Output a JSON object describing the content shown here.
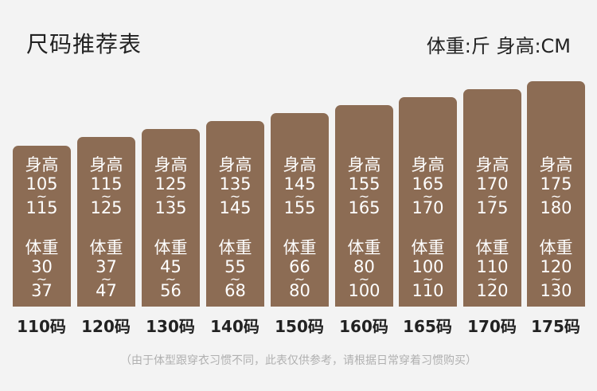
{
  "header": {
    "title": "尺码推荐表",
    "units": "体重:斤 身高:CM"
  },
  "labels": {
    "height": "身高",
    "weight": "体重",
    "tilde": "~"
  },
  "sizes": [
    {
      "size": "110码",
      "height_min": "105",
      "height_max": "115",
      "weight_min": "30",
      "weight_max": "37"
    },
    {
      "size": "120码",
      "height_min": "115",
      "height_max": "125",
      "weight_min": "37",
      "weight_max": "47"
    },
    {
      "size": "130码",
      "height_min": "125",
      "height_max": "135",
      "weight_min": "45",
      "weight_max": "56"
    },
    {
      "size": "140码",
      "height_min": "135",
      "height_max": "145",
      "weight_min": "55",
      "weight_max": "68"
    },
    {
      "size": "150码",
      "height_min": "145",
      "height_max": "155",
      "weight_min": "66",
      "weight_max": "80"
    },
    {
      "size": "160码",
      "height_min": "155",
      "height_max": "165",
      "weight_min": "80",
      "weight_max": "100"
    },
    {
      "size": "165码",
      "height_min": "165",
      "height_max": "170",
      "weight_min": "100",
      "weight_max": "110"
    },
    {
      "size": "170码",
      "height_min": "170",
      "height_max": "175",
      "weight_min": "110",
      "weight_max": "120"
    },
    {
      "size": "175码",
      "height_min": "175",
      "height_max": "180",
      "weight_min": "120",
      "weight_max": "130"
    }
  ],
  "colors": {
    "column": "#8c6c54",
    "background": "#f3f3f3"
  },
  "footer": {
    "note": "（由于体型跟穿衣习惯不同，此表仅供参考，请根据日常穿着习惯购买）"
  }
}
